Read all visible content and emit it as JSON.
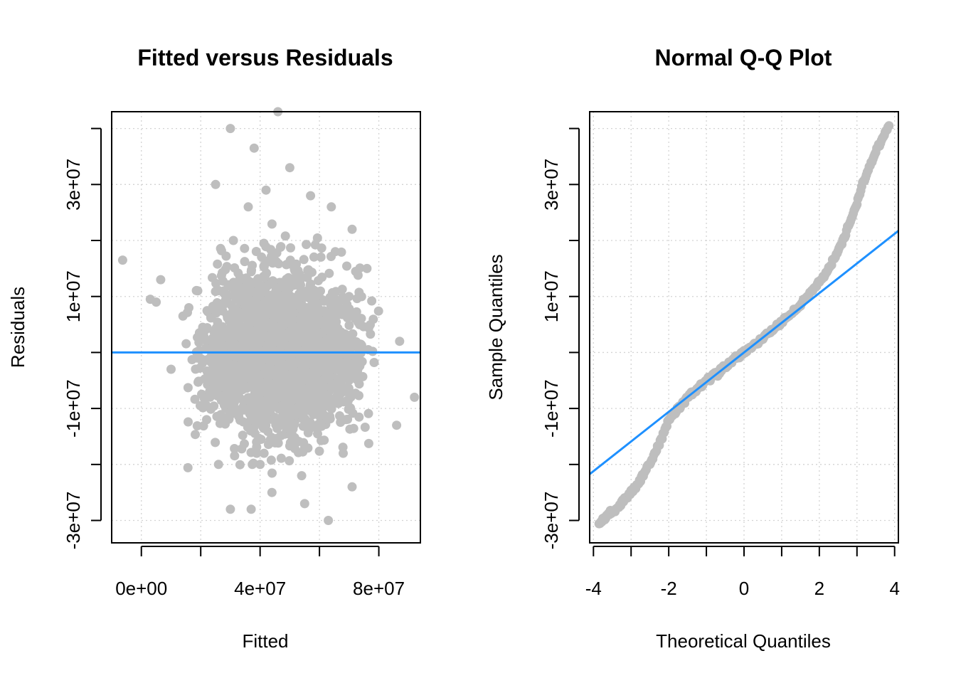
{
  "chart_data": [
    {
      "type": "scatter",
      "title": "Fitted versus Residuals",
      "xlabel": "Fitted",
      "ylabel": "Residuals",
      "xlim": [
        -10000000,
        94000000
      ],
      "ylim": [
        -34000000,
        43000000
      ],
      "x_ticks": [
        0,
        40000000,
        80000000
      ],
      "x_tick_labels": [
        "0e+00",
        "4e+07",
        "8e+07"
      ],
      "y_ticks": [
        -30000000,
        -10000000,
        10000000,
        30000000
      ],
      "y_tick_labels": [
        "-3e+07",
        "-1e+07",
        "1e+07",
        "3e+07"
      ],
      "grid": true,
      "point_color": "#bebebe",
      "line_color": "#1e90ff",
      "reference_line": {
        "type": "horizontal",
        "y": 0
      },
      "outliers": [
        [
          -6300000,
          16500000
        ],
        [
          3000000,
          9500000
        ],
        [
          5000000,
          9000000
        ],
        [
          6500000,
          13000000
        ],
        [
          14000000,
          6500000
        ],
        [
          16000000,
          8000000
        ],
        [
          19000000,
          11000000
        ],
        [
          20000000,
          3000000
        ],
        [
          10000000,
          -3000000
        ],
        [
          30000000,
          40000000
        ],
        [
          25000000,
          30000000
        ],
        [
          31000000,
          20000000
        ],
        [
          38000000,
          36500000
        ],
        [
          46000000,
          43000000
        ],
        [
          36000000,
          26000000
        ],
        [
          50000000,
          33000000
        ],
        [
          42000000,
          29000000
        ],
        [
          57000000,
          28000000
        ],
        [
          64000000,
          26000000
        ],
        [
          71000000,
          22000000
        ],
        [
          76000000,
          15000000
        ],
        [
          87000000,
          2000000
        ],
        [
          92000000,
          -8000000
        ],
        [
          86000000,
          -13000000
        ],
        [
          30000000,
          -28000000
        ],
        [
          37000000,
          -28000000
        ],
        [
          55000000,
          -27000000
        ],
        [
          63000000,
          -30000000
        ],
        [
          71000000,
          -24000000
        ],
        [
          54000000,
          -22000000
        ],
        [
          26000000,
          -20000000
        ],
        [
          44000000,
          -25000000
        ],
        [
          22000000,
          -12000000
        ],
        [
          23000000,
          -7000000
        ],
        [
          40000000,
          -20000000
        ],
        [
          68000000,
          -18000000
        ]
      ],
      "cloud": {
        "x_mean": 47000000,
        "x_sd": 12000000,
        "y_sd": 7000000,
        "n": 2600
      }
    },
    {
      "type": "scatter",
      "title": "Normal Q-Q Plot",
      "xlabel": "Theoretical Quantiles",
      "ylabel": "Sample Quantiles",
      "xlim": [
        -4.1,
        4.1
      ],
      "ylim": [
        -34000000,
        43000000
      ],
      "x_ticks": [
        -4,
        -2,
        0,
        2,
        4
      ],
      "x_tick_labels": [
        "-4",
        "-2",
        "0",
        "2",
        "4"
      ],
      "y_ticks": [
        -30000000,
        -10000000,
        10000000,
        30000000
      ],
      "y_tick_labels": [
        "-3e+07",
        "-1e+07",
        "1e+07",
        "3e+07"
      ],
      "grid": true,
      "point_color": "#bebebe",
      "line_color": "#1e90ff",
      "qq_line": {
        "intercept": 0,
        "slope": 5300000
      },
      "qq_points": [
        [
          -3.85,
          -30500000
        ],
        [
          -3.6,
          -29000000
        ],
        [
          -3.4,
          -28000000
        ],
        [
          -3.2,
          -26500000
        ],
        [
          -3.0,
          -25000000
        ],
        [
          -2.8,
          -23200000
        ],
        [
          -2.6,
          -21000000
        ],
        [
          -2.4,
          -18500000
        ],
        [
          -2.2,
          -15500000
        ],
        [
          -2.0,
          -12000000
        ],
        [
          -1.5,
          -8000000
        ],
        [
          -1.0,
          -5100000
        ],
        [
          -0.5,
          -2500000
        ],
        [
          0.0,
          0
        ],
        [
          0.5,
          2600000
        ],
        [
          1.0,
          5300000
        ],
        [
          1.5,
          8500000
        ],
        [
          2.0,
          12500000
        ],
        [
          2.3,
          15500000
        ],
        [
          2.6,
          19500000
        ],
        [
          2.8,
          23000000
        ],
        [
          3.0,
          26500000
        ],
        [
          3.15,
          30000000
        ],
        [
          3.3,
          32500000
        ],
        [
          3.55,
          36500000
        ],
        [
          3.85,
          40500000
        ]
      ]
    }
  ]
}
